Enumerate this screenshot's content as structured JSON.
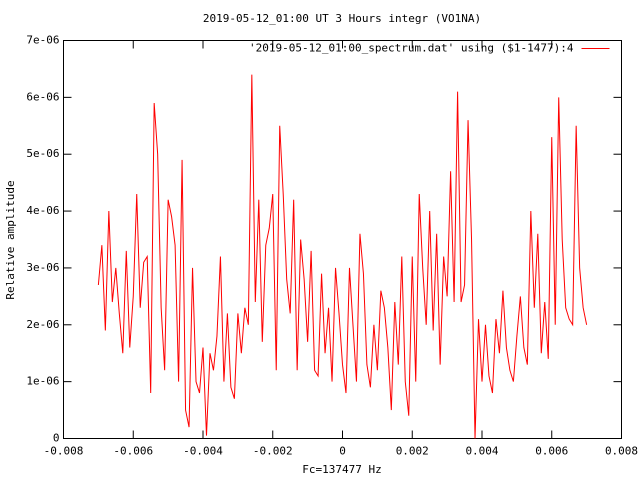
{
  "chart_data": {
    "type": "line",
    "title": "2019-05-12_01:00 UT 3 Hours integr (VO1NA)",
    "xlabel": "Fc=137477 Hz",
    "ylabel": "Relative amplitude",
    "xlim": [
      -0.008,
      0.008
    ],
    "ylim": [
      0,
      7e-06
    ],
    "xticks": [
      -0.008,
      -0.006,
      -0.004,
      -0.002,
      0,
      0.002,
      0.004,
      0.006,
      0.008
    ],
    "yticks": [
      0,
      {
        "value": 1e-06,
        "label": "1e-06"
      },
      {
        "value": 2e-06,
        "label": "2e-06"
      },
      {
        "value": 3e-06,
        "label": "3e-06"
      },
      {
        "value": 4e-06,
        "label": "4e-06"
      },
      {
        "value": 5e-06,
        "label": "5e-06"
      },
      {
        "value": 6e-06,
        "label": "6e-06"
      },
      {
        "value": 7e-06,
        "label": "7e-06"
      }
    ],
    "grid": false,
    "legend": "top-right",
    "x": [
      -0.007,
      -0.0069,
      -0.0068,
      -0.0067,
      -0.0066,
      -0.0065,
      -0.0064,
      -0.0063,
      -0.0062,
      -0.0061,
      -0.006,
      -0.0059,
      -0.0058,
      -0.0057,
      -0.0056,
      -0.0055,
      -0.0054,
      -0.0053,
      -0.0052,
      -0.0051,
      -0.005,
      -0.0049,
      -0.0048,
      -0.0047,
      -0.0046,
      -0.0045,
      -0.0044,
      -0.0043,
      -0.0042,
      -0.0041,
      -0.004,
      -0.0039,
      -0.0038,
      -0.0037,
      -0.0036,
      -0.0035,
      -0.0034,
      -0.0033,
      -0.0032,
      -0.0031,
      -0.003,
      -0.0029,
      -0.0028,
      -0.0027,
      -0.0026,
      -0.0025,
      -0.0024,
      -0.0023,
      -0.0022,
      -0.0021,
      -0.002,
      -0.0019,
      -0.0018,
      -0.0017,
      -0.0016,
      -0.0015,
      -0.0014,
      -0.0013,
      -0.0012,
      -0.0011,
      -0.001,
      -0.0009,
      -0.0008,
      -0.0007,
      -0.0006,
      -0.0005,
      -0.0004,
      -0.0003,
      -0.0002,
      -0.0001,
      0,
      0.0001,
      0.0002,
      0.0003,
      0.0004,
      0.0005,
      0.0006,
      0.0007,
      0.0008,
      0.0009,
      0.001,
      0.0011,
      0.0012,
      0.0013,
      0.0014,
      0.0015,
      0.0016,
      0.0017,
      0.0018,
      0.0019,
      0.002,
      0.0021,
      0.0022,
      0.0023,
      0.0024,
      0.0025,
      0.0026,
      0.0027,
      0.0028,
      0.0029,
      0.003,
      0.0031,
      0.0032,
      0.0033,
      0.0034,
      0.0035,
      0.0036,
      0.0037,
      0.0038,
      0.0039,
      0.004,
      0.0041,
      0.0042,
      0.0043,
      0.0044,
      0.0045,
      0.0046,
      0.0047,
      0.0048,
      0.0049,
      0.005,
      0.0051,
      0.0052,
      0.0053,
      0.0054,
      0.0055,
      0.0056,
      0.0057,
      0.0058,
      0.0059,
      0.006,
      0.0061,
      0.0062,
      0.0063,
      0.0064,
      0.0065,
      0.0066,
      0.0067,
      0.0068,
      0.0069,
      0.007
    ],
    "series": [
      {
        "name": "'2019-05-12_01:00_spectrum.dat' using ($1-1477):4",
        "color": "#ff0000",
        "values": [
          2.7e-06,
          3.4e-06,
          1.9e-06,
          4e-06,
          2.4e-06,
          3e-06,
          2.2e-06,
          1.5e-06,
          3.3e-06,
          1.6e-06,
          2.5e-06,
          4.3e-06,
          2.3e-06,
          3.1e-06,
          3.2e-06,
          8e-07,
          5.9e-06,
          5e-06,
          2.3e-06,
          1.2e-06,
          4.2e-06,
          3.9e-06,
          3.4e-06,
          1e-06,
          4.9e-06,
          5e-07,
          2e-07,
          3e-06,
          1e-06,
          8e-07,
          1.6e-06,
          5e-08,
          1.5e-06,
          1.2e-06,
          1.8e-06,
          3.2e-06,
          1e-06,
          2.2e-06,
          9e-07,
          7e-07,
          2.2e-06,
          1.5e-06,
          2.3e-06,
          2e-06,
          6.4e-06,
          2.4e-06,
          4.2e-06,
          1.7e-06,
          3.4e-06,
          3.7e-06,
          4.3e-06,
          1.2e-06,
          5.5e-06,
          4.3e-06,
          2.8e-06,
          2.2e-06,
          4.2e-06,
          1.2e-06,
          3.5e-06,
          2.8e-06,
          1.7e-06,
          3.3e-06,
          1.2e-06,
          1.1e-06,
          2.9e-06,
          1.5e-06,
          2.3e-06,
          1e-06,
          3e-06,
          2.2e-06,
          1.3e-06,
          8e-07,
          3e-06,
          2e-06,
          1e-06,
          3.6e-06,
          2.9e-06,
          1.3e-06,
          9e-07,
          2e-06,
          1.2e-06,
          2.6e-06,
          2.3e-06,
          1.6e-06,
          5e-07,
          2.4e-06,
          1.3e-06,
          3.2e-06,
          1e-06,
          4e-07,
          3.2e-06,
          1e-06,
          4.3e-06,
          3e-06,
          2e-06,
          4e-06,
          1.9e-06,
          3.6e-06,
          1.3e-06,
          3.2e-06,
          2.5e-06,
          4.7e-06,
          2.4e-06,
          6.1e-06,
          2.4e-06,
          2.7e-06,
          5.6e-06,
          3.5e-06,
          0,
          2.1e-06,
          1e-06,
          2e-06,
          1.1e-06,
          8e-07,
          2.1e-06,
          1.5e-06,
          2.6e-06,
          1.6e-06,
          1.2e-06,
          1e-06,
          1.8e-06,
          2.5e-06,
          1.6e-06,
          1.3e-06,
          4e-06,
          2.3e-06,
          3.6e-06,
          1.5e-06,
          2.4e-06,
          1.4e-06,
          5.3e-06,
          2e-06,
          6e-06,
          3.5e-06,
          2.3e-06,
          2.1e-06,
          2e-06,
          5.5e-06,
          3e-06,
          2.3e-06,
          2e-06
        ]
      }
    ]
  }
}
